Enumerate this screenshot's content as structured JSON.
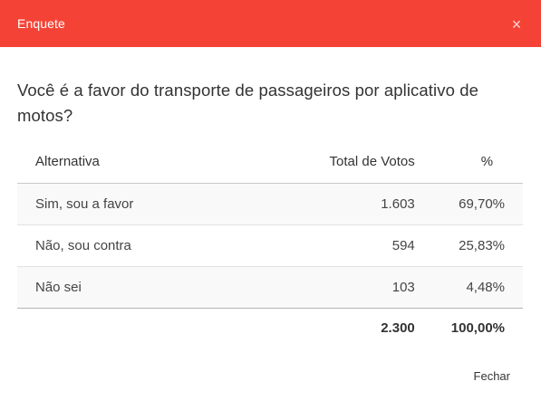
{
  "header": {
    "title": "Enquete",
    "close_glyph": "×",
    "color": "#f44336"
  },
  "poll": {
    "question": "Você é a favor do transporte de passageiros por aplicativo de motos?",
    "columns": {
      "alternative": "Alternativa",
      "votes": "Total de Votos",
      "percent": "%"
    },
    "rows": [
      {
        "label": "Sim, sou a favor",
        "votes": "1.603",
        "percent": "69,70%"
      },
      {
        "label": "Não, sou contra",
        "votes": "594",
        "percent": "25,83%"
      },
      {
        "label": "Não sei",
        "votes": "103",
        "percent": "4,48%"
      }
    ],
    "total": {
      "votes": "2.300",
      "percent": "100,00%"
    }
  },
  "footer": {
    "close_label": "Fechar"
  }
}
